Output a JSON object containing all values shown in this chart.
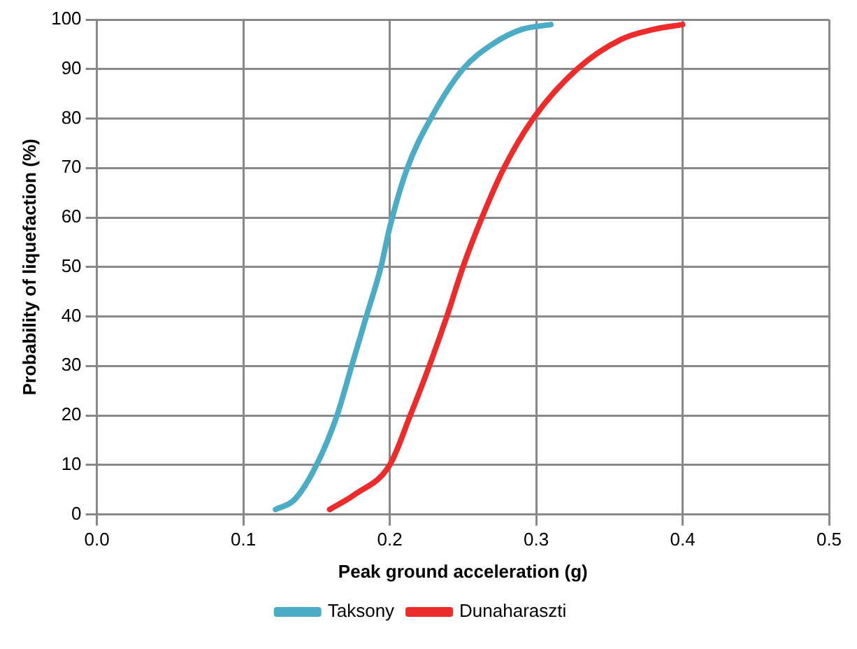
{
  "chart_data": {
    "type": "line",
    "xlabel": "Peak ground acceleration (g)",
    "ylabel": "Probability of liquefaction (%)",
    "xlim": [
      0,
      0.5
    ],
    "xticks": [
      {
        "value": 0,
        "label": "0.0"
      },
      0.1,
      0.2,
      0.3,
      0.4,
      0.5
    ],
    "ylim": [
      0,
      100
    ],
    "yticks": [
      0,
      10,
      20,
      30,
      40,
      50,
      60,
      70,
      80,
      90,
      100
    ],
    "grid": true,
    "legend": "bottom",
    "marker": "none",
    "series": [
      {
        "name": "Taksony",
        "color": "#4bacc6",
        "x": [
          0.122,
          0.135,
          0.15,
          0.164,
          0.174,
          0.184,
          0.194,
          0.2,
          0.212,
          0.228,
          0.25,
          0.27,
          0.29,
          0.31
        ],
        "values": [
          1,
          3,
          10,
          20,
          30,
          40,
          50,
          58,
          70,
          80,
          90,
          95,
          98,
          99
        ]
      },
      {
        "name": "Dunaharaszti",
        "color": "#ee2b2b",
        "x": [
          0.159,
          0.176,
          0.2,
          0.214,
          0.227,
          0.239,
          0.25,
          0.263,
          0.278,
          0.298,
          0.328,
          0.358,
          0.38,
          0.4
        ],
        "values": [
          1,
          4,
          10,
          20,
          30,
          40,
          50,
          60,
          70,
          80,
          90,
          96,
          98,
          99
        ]
      }
    ]
  }
}
